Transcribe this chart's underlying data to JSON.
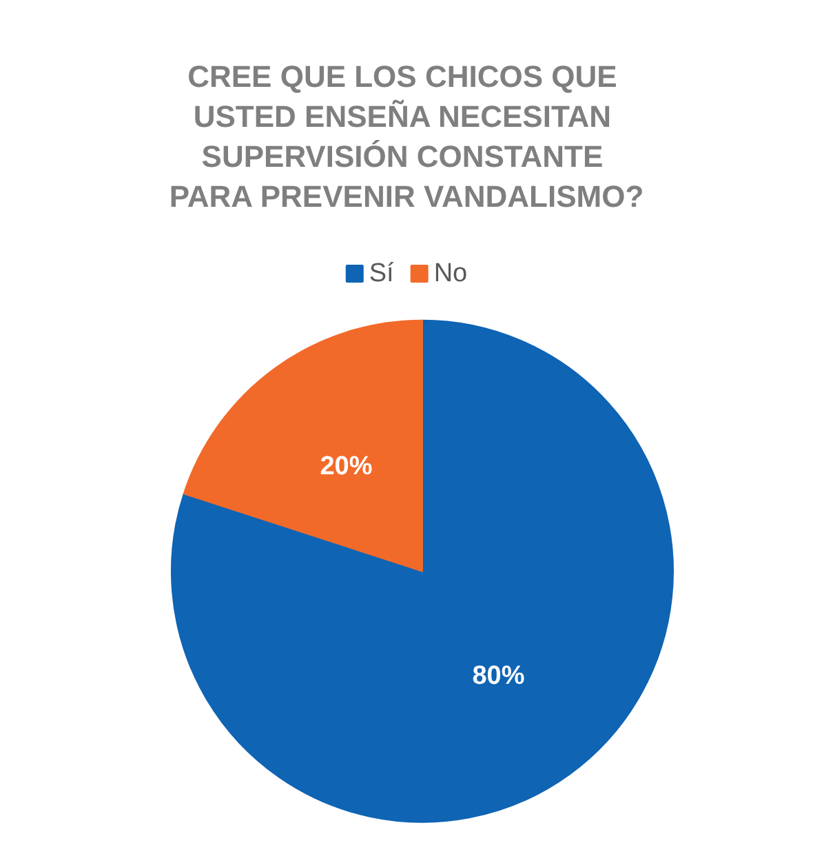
{
  "chart_data": {
    "type": "pie",
    "title": "CREE QUE LOS CHICOS QUE USTED ENSEÑA NECESITAN SUPERVISIÓN CONSTANTE PARA PREVENIR VANDALISMO?",
    "categories": [
      "Sí",
      "No"
    ],
    "values": [
      80,
      20
    ],
    "colors": [
      "#0f64b4",
      "#f26a2a"
    ],
    "value_labels": [
      "80%",
      "20%"
    ],
    "legend": "top"
  }
}
